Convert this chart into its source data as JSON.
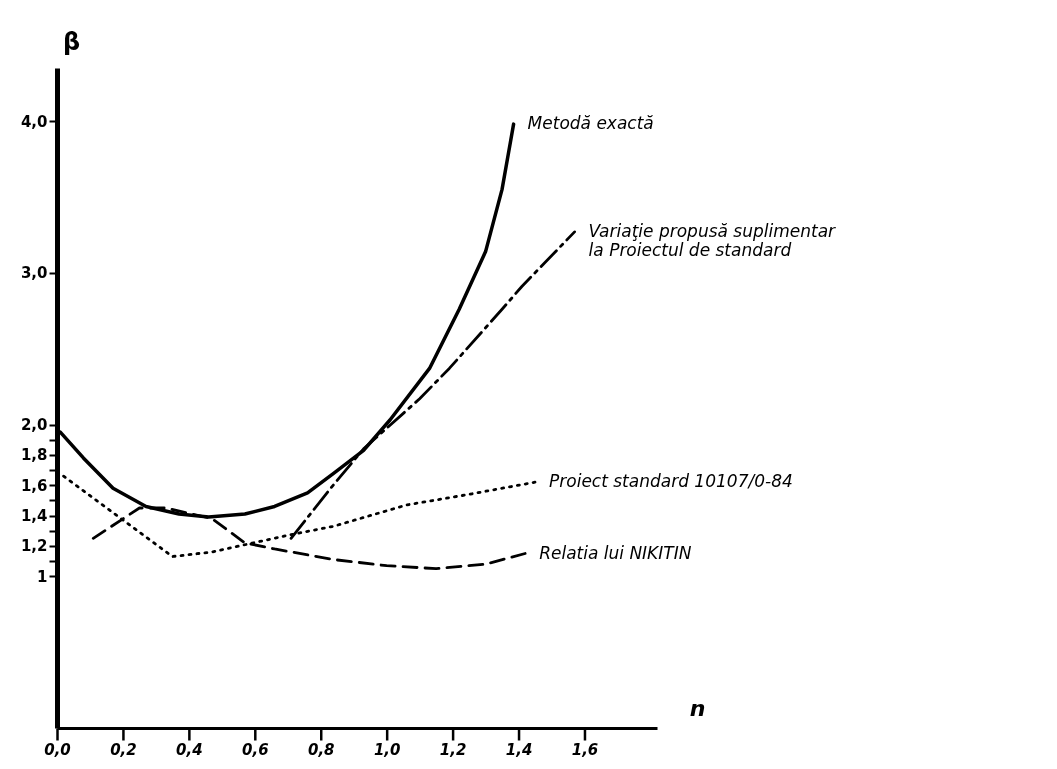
{
  "chart_data": {
    "type": "line",
    "xlabel": "n",
    "ylabel": "β",
    "xlim": [
      0,
      1.82
    ],
    "ylim": [
      0,
      4.35
    ],
    "xticks": [
      {
        "value": 0,
        "label": "0,0"
      },
      {
        "value": 0.2,
        "label": "0,2"
      },
      {
        "value": 0.4,
        "label": "0,4"
      },
      {
        "value": 0.6,
        "label": "0,6"
      },
      {
        "value": 0.8,
        "label": "0,8"
      },
      {
        "value": 1.0,
        "label": "1,0"
      },
      {
        "value": 1.2,
        "label": "1,2"
      },
      {
        "value": 1.4,
        "label": "1,4"
      },
      {
        "value": 1.6,
        "label": "1,6"
      }
    ],
    "yticks": [
      1,
      {
        "value": 1.1,
        "label": null
      },
      {
        "value": 1.2,
        "label": "1,2"
      },
      {
        "value": 1.3,
        "label": null
      },
      {
        "value": 1.4,
        "label": "1,4"
      },
      {
        "value": 1.5,
        "label": null
      },
      {
        "value": 1.6,
        "label": "1,6"
      },
      {
        "value": 1.7,
        "label": null
      },
      {
        "value": 1.8,
        "label": "1,8"
      },
      {
        "value": 1.9,
        "label": null
      },
      {
        "value": 2.0,
        "label": "2,0"
      },
      {
        "value": 3.0,
        "label": "3,0"
      },
      {
        "value": 4.0,
        "label": "4,0"
      }
    ],
    "grid": false,
    "legend": false,
    "marker": "none",
    "series": [
      {
        "name": "Metodă exactă",
        "color": "#000000",
        "line_style": "solid",
        "x": [
          0.01,
          0.08,
          0.17,
          0.27,
          0.37,
          0.46,
          0.57,
          0.66,
          0.76,
          0.84,
          0.93,
          1.01,
          1.13,
          1.22,
          1.3,
          1.35,
          1.385
        ],
        "values": [
          1.95,
          1.78,
          1.58,
          1.46,
          1.41,
          1.39,
          1.41,
          1.46,
          1.55,
          1.68,
          1.83,
          2.03,
          2.37,
          2.76,
          3.14,
          3.55,
          3.98
        ]
      },
      {
        "name": "Variaţie propusă suplimentar\nla Proiectul de standard",
        "color": "#000000",
        "line_style": "dashdot",
        "x": [
          0.71,
          0.83,
          0.93,
          1.1,
          1.19,
          1.35,
          1.41,
          1.57
        ],
        "values": [
          1.25,
          1.58,
          1.84,
          2.17,
          2.37,
          2.76,
          2.91,
          3.27
        ]
      },
      {
        "name": "Proiect standard 10107/0-84",
        "color": "#000000",
        "line_style": "dotted",
        "x": [
          0.02,
          0.35,
          0.47,
          0.7,
          0.84,
          1.06,
          1.25,
          1.45
        ],
        "values": [
          1.66,
          1.13,
          1.16,
          1.27,
          1.33,
          1.47,
          1.54,
          1.62
        ]
      },
      {
        "name": "Relatia lui NIKITIN",
        "color": "#000000",
        "line_style": "dashed",
        "x": [
          0.11,
          0.25,
          0.33,
          0.47,
          0.57,
          0.66,
          0.84,
          1.0,
          1.15,
          1.3,
          1.42
        ],
        "values": [
          1.25,
          1.45,
          1.45,
          1.38,
          1.22,
          1.18,
          1.11,
          1.07,
          1.05,
          1.08,
          1.15
        ]
      }
    ]
  }
}
